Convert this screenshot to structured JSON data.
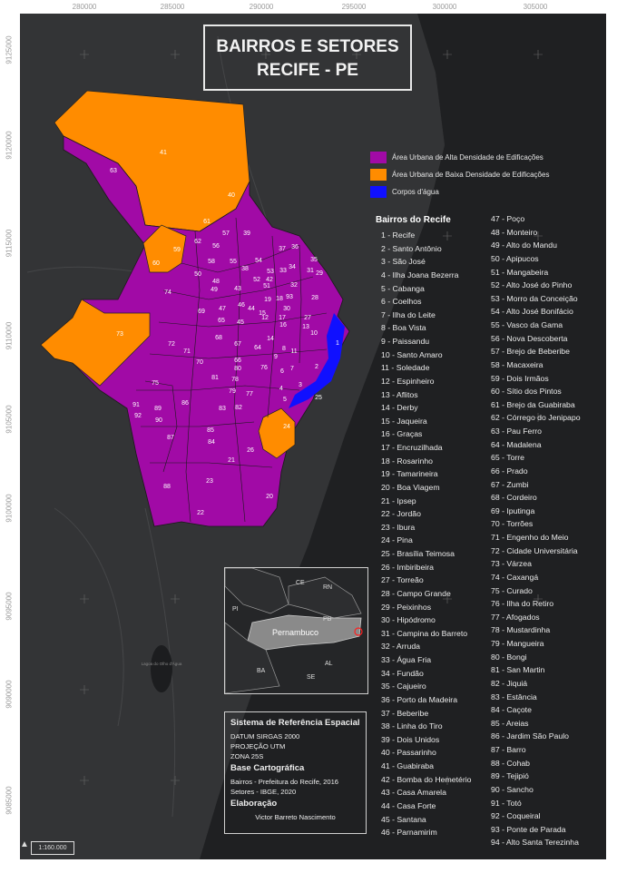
{
  "title": {
    "line1": "BAIRROS E SETORES",
    "line2": "RECIFE - PE"
  },
  "coords_top": [
    "280000",
    "285000",
    "290000",
    "295000",
    "300000",
    "305000"
  ],
  "coords_left": [
    "9125000",
    "9120000",
    "9115000",
    "9110000",
    "9105000",
    "9100000",
    "9095000",
    "9090000",
    "9085000"
  ],
  "legend": {
    "items": [
      {
        "label": "Área Urbana de Alta Densidade de Edificações",
        "color": "#a10aa6"
      },
      {
        "label": "Área Urbana de Baixa Densidade de Edificações",
        "color": "#ff8c00"
      },
      {
        "label": "Corpos d'água",
        "color": "#1010ff"
      }
    ]
  },
  "neighborhoods_title": "Bairros do Recife",
  "neighborhoods": [
    "1 - Recife",
    "2 - Santo Antônio",
    "3 - São José",
    "4 - Ilha Joana Bezerra",
    "5 - Cabanga",
    "6 - Coelhos",
    "7 - Ilha do Leite",
    "8 - Boa Vista",
    "9 - Paissandu",
    "10 - Santo Amaro",
    "11 - Soledade",
    "12 - Espinheiro",
    "13 - Aflitos",
    "14 - Derby",
    "15 - Jaqueira",
    "16 - Graças",
    "17 - Encruzilhada",
    "18 - Rosarinho",
    "19 - Tamarineira",
    "20 - Boa Viagem",
    "21 - Ipsep",
    "22 - Jordão",
    "23 - Ibura",
    "24 - Pina",
    "25 - Brasília Teimosa",
    "26 - Imbiribeira",
    "27 - Torreão",
    "28 - Campo Grande",
    "29 - Peixinhos",
    "30 - Hipódromo",
    "31 - Campina do Barreto",
    "32 - Arruda",
    "33 - Água Fria",
    "34 - Fundão",
    "35 - Cajueiro",
    "36 - Porto da Madeira",
    "37 - Beberibe",
    "38 - Linha do Tiro",
    "39 - Dois Unidos",
    "40 - Passarinho",
    "41 - Guabiraba",
    "42 - Bomba do Hemetério",
    "43 - Casa Amarela",
    "44 - Casa Forte",
    "45 - Santana",
    "46 - Parnamirim",
    "47 - Poço",
    "48 - Monteiro",
    "49 - Alto do Mandu",
    "50 - Apipucos",
    "51 - Mangabeira",
    "52 - Alto José do Pinho",
    "53 - Morro da Conceição",
    "54 - Alto José Bonifácio",
    "55 - Vasco da Gama",
    "56 - Nova Descoberta",
    "57 - Brejo de Beberibe",
    "58 - Macaxeira",
    "59 - Dois Irmãos",
    "60 - Sítio dos Pintos",
    "61 - Brejo da Guabiraba",
    "62 - Córrego do Jenipapo",
    "63 - Pau Ferro",
    "64 - Madalena",
    "65 - Torre",
    "66 - Prado",
    "67 - Zumbi",
    "68 - Cordeiro",
    "69 - Iputinga",
    "70 - Torrões",
    "71 - Engenho do Meio",
    "72 - Cidade Universitária",
    "73 - Várzea",
    "74 - Caxangá",
    "75 - Curado",
    "76 - Ilha do Retiro",
    "77 - Afogados",
    "78 - Mustardinha",
    "79 - Mangueira",
    "80 - Bongi",
    "81 - San Martin",
    "82 - Jiquiá",
    "83 - Estância",
    "84 - Caçote",
    "85 - Areias",
    "86 - Jardim São Paulo",
    "87 - Barro",
    "88 - Cohab",
    "89 - Tejipió",
    "90 - Sancho",
    "91 - Totó",
    "92 - Coqueiral",
    "93 - Ponte de Parada",
    "94 - Alto Santa Terezinha"
  ],
  "map_labels": [
    {
      "n": "41"
    },
    {
      "n": "63"
    },
    {
      "n": "40"
    },
    {
      "n": "61"
    },
    {
      "n": "57"
    },
    {
      "n": "39"
    },
    {
      "n": "62"
    },
    {
      "n": "56"
    },
    {
      "n": "59"
    },
    {
      "n": "60"
    },
    {
      "n": "37"
    },
    {
      "n": "36"
    },
    {
      "n": "55"
    },
    {
      "n": "54"
    },
    {
      "n": "38"
    },
    {
      "n": "35"
    },
    {
      "n": "58"
    },
    {
      "n": "53"
    },
    {
      "n": "33"
    },
    {
      "n": "34"
    },
    {
      "n": "31"
    },
    {
      "n": "29"
    },
    {
      "n": "50"
    },
    {
      "n": "52"
    },
    {
      "n": "51"
    },
    {
      "n": "32"
    },
    {
      "n": "42"
    },
    {
      "n": "48"
    },
    {
      "n": "74"
    },
    {
      "n": "49"
    },
    {
      "n": "43"
    },
    {
      "n": "19"
    },
    {
      "n": "18"
    },
    {
      "n": "93"
    },
    {
      "n": "30"
    },
    {
      "n": "28"
    },
    {
      "n": "46"
    },
    {
      "n": "44"
    },
    {
      "n": "47"
    },
    {
      "n": "69"
    },
    {
      "n": "15"
    },
    {
      "n": "17"
    },
    {
      "n": "12"
    },
    {
      "n": "27"
    },
    {
      "n": "45"
    },
    {
      "n": "65"
    },
    {
      "n": "16"
    },
    {
      "n": "13"
    },
    {
      "n": "1"
    },
    {
      "n": "10"
    },
    {
      "n": "73"
    },
    {
      "n": "68"
    },
    {
      "n": "14"
    },
    {
      "n": "72"
    },
    {
      "n": "71"
    },
    {
      "n": "67"
    },
    {
      "n": "64"
    },
    {
      "n": "8"
    },
    {
      "n": "11"
    },
    {
      "n": "70"
    },
    {
      "n": "66"
    },
    {
      "n": "9"
    },
    {
      "n": "80"
    },
    {
      "n": "76"
    },
    {
      "n": "6"
    },
    {
      "n": "7"
    },
    {
      "n": "2"
    },
    {
      "n": "81"
    },
    {
      "n": "78"
    },
    {
      "n": "3"
    },
    {
      "n": "75"
    },
    {
      "n": "79"
    },
    {
      "n": "77"
    },
    {
      "n": "4"
    },
    {
      "n": "5"
    },
    {
      "n": "25"
    },
    {
      "n": "86"
    },
    {
      "n": "83"
    },
    {
      "n": "82"
    },
    {
      "n": "91"
    },
    {
      "n": "92"
    },
    {
      "n": "90"
    },
    {
      "n": "89"
    },
    {
      "n": "24"
    },
    {
      "n": "85"
    },
    {
      "n": "87"
    },
    {
      "n": "84"
    },
    {
      "n": "26"
    },
    {
      "n": "21"
    },
    {
      "n": "23"
    },
    {
      "n": "88"
    },
    {
      "n": "22"
    },
    {
      "n": "20"
    }
  ],
  "inset": {
    "states": [
      "CE",
      "RN",
      "PI",
      "PB",
      "Pernambuco",
      "BA",
      "AL",
      "SE"
    ]
  },
  "info": {
    "h1": "Sistema de Referência Espacial",
    "datum": "DATUM SIRGAS 2000",
    "proj": "PROJEÇÃO UTM",
    "zone": "ZONA 25S",
    "h2": "Base Cartográfica",
    "src1": "Bairros - Prefeitura do Recife, 2016",
    "src2": "Setores - IBGE, 2020",
    "h3": "Elaboração",
    "author": "Victor Barreto Nascimento"
  },
  "scale": "1:160.000",
  "north": "▲",
  "background_label": "Lagoa do Olho d'Água"
}
